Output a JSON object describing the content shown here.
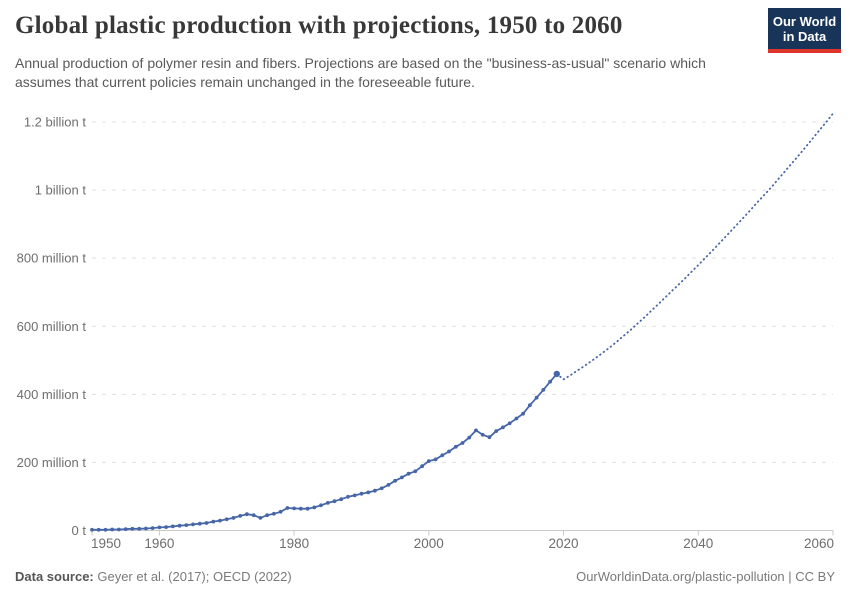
{
  "header": {
    "title": "Global plastic production with projections, 1950 to 2060",
    "subtitle": "Annual production of polymer resin and fibers. Projections are based on the \"business-as-usual\" scenario which assumes that current policies remain unchanged in the foreseeable future.",
    "logo": {
      "line1": "Our World",
      "line2": "in Data",
      "bg_color": "#183459",
      "accent_color": "#dd352b",
      "text_color": "#ffffff"
    }
  },
  "footer": {
    "datasource_label": "Data source:",
    "datasource_value": " Geyer et al. (2017); OECD (2022)",
    "attribution": "OurWorldinData.org/plastic-pollution | CC BY"
  },
  "chart_data": {
    "type": "line",
    "title": "Global plastic production with projections, 1950 to 2060",
    "xlabel": "",
    "ylabel": "",
    "unit": "tonnes (million t shown on axis)",
    "grid": true,
    "legend_position": "none",
    "x_range": [
      1950,
      2060
    ],
    "y_range": [
      0,
      1260
    ],
    "colors": {
      "line": "#4766a8",
      "grid": "#e0e0e0",
      "axis": "#c9c9c9",
      "tick_text": "#6e6e6e"
    },
    "y_axis": {
      "ticks": [
        {
          "value": 0,
          "label": "0 t"
        },
        {
          "value": 200,
          "label": "200 million t"
        },
        {
          "value": 400,
          "label": "400 million t"
        },
        {
          "value": 600,
          "label": "600 million t"
        },
        {
          "value": 800,
          "label": "800 million t"
        },
        {
          "value": 1000,
          "label": "1 billion t"
        },
        {
          "value": 1200,
          "label": "1.2 billion t"
        }
      ]
    },
    "x_axis": {
      "ticks": [
        {
          "value": 1950,
          "label": "1950"
        },
        {
          "value": 1960,
          "label": "1960"
        },
        {
          "value": 1980,
          "label": "1980"
        },
        {
          "value": 2000,
          "label": "2000"
        },
        {
          "value": 2020,
          "label": "2020"
        },
        {
          "value": 2040,
          "label": "2040"
        },
        {
          "value": 2060,
          "label": "2060"
        }
      ]
    },
    "series": [
      {
        "name": "Historical production (million tonnes)",
        "style": "solid",
        "markers": true,
        "color": "#4766a8",
        "points": [
          [
            1950,
            2
          ],
          [
            1951,
            2
          ],
          [
            1952,
            2
          ],
          [
            1953,
            3
          ],
          [
            1954,
            3
          ],
          [
            1955,
            4
          ],
          [
            1956,
            5
          ],
          [
            1957,
            5
          ],
          [
            1958,
            6
          ],
          [
            1959,
            7
          ],
          [
            1960,
            9
          ],
          [
            1961,
            10
          ],
          [
            1962,
            12
          ],
          [
            1963,
            14
          ],
          [
            1964,
            16
          ],
          [
            1965,
            18
          ],
          [
            1966,
            20
          ],
          [
            1967,
            22
          ],
          [
            1968,
            26
          ],
          [
            1969,
            29
          ],
          [
            1970,
            33
          ],
          [
            1971,
            37
          ],
          [
            1972,
            43
          ],
          [
            1973,
            48
          ],
          [
            1974,
            45
          ],
          [
            1975,
            37
          ],
          [
            1976,
            45
          ],
          [
            1977,
            49
          ],
          [
            1978,
            55
          ],
          [
            1979,
            66
          ],
          [
            1980,
            65
          ],
          [
            1981,
            64
          ],
          [
            1982,
            64
          ],
          [
            1983,
            68
          ],
          [
            1984,
            74
          ],
          [
            1985,
            81
          ],
          [
            1986,
            86
          ],
          [
            1987,
            92
          ],
          [
            1988,
            99
          ],
          [
            1989,
            103
          ],
          [
            1990,
            108
          ],
          [
            1991,
            112
          ],
          [
            1992,
            117
          ],
          [
            1993,
            124
          ],
          [
            1994,
            134
          ],
          [
            1995,
            146
          ],
          [
            1996,
            156
          ],
          [
            1997,
            167
          ],
          [
            1998,
            174
          ],
          [
            1999,
            189
          ],
          [
            2000,
            204
          ],
          [
            2001,
            209
          ],
          [
            2002,
            221
          ],
          [
            2003,
            232
          ],
          [
            2004,
            246
          ],
          [
            2005,
            257
          ],
          [
            2006,
            273
          ],
          [
            2007,
            294
          ],
          [
            2008,
            281
          ],
          [
            2009,
            274
          ],
          [
            2010,
            292
          ],
          [
            2011,
            303
          ],
          [
            2012,
            315
          ],
          [
            2013,
            329
          ],
          [
            2014,
            343
          ],
          [
            2015,
            368
          ],
          [
            2016,
            390
          ],
          [
            2017,
            413
          ],
          [
            2018,
            437
          ],
          [
            2019,
            460
          ]
        ]
      },
      {
        "name": "Projection, business-as-usual scenario (million tonnes)",
        "style": "dotted",
        "markers": false,
        "color": "#4766a8",
        "points": [
          [
            2019,
            460
          ],
          [
            2020,
            444
          ],
          [
            2021,
            456
          ],
          [
            2022,
            469
          ],
          [
            2023,
            482
          ],
          [
            2024,
            496
          ],
          [
            2025,
            510
          ],
          [
            2026,
            525
          ],
          [
            2027,
            540
          ],
          [
            2028,
            556
          ],
          [
            2029,
            573
          ],
          [
            2030,
            590
          ],
          [
            2031,
            608
          ],
          [
            2032,
            626
          ],
          [
            2033,
            645
          ],
          [
            2034,
            664
          ],
          [
            2035,
            683
          ],
          [
            2036,
            702
          ],
          [
            2037,
            721
          ],
          [
            2038,
            740
          ],
          [
            2039,
            760
          ],
          [
            2040,
            780
          ],
          [
            2041,
            800
          ],
          [
            2042,
            820
          ],
          [
            2043,
            841
          ],
          [
            2044,
            862
          ],
          [
            2045,
            883
          ],
          [
            2046,
            904
          ],
          [
            2047,
            925
          ],
          [
            2048,
            947
          ],
          [
            2049,
            969
          ],
          [
            2050,
            990
          ],
          [
            2051,
            1012
          ],
          [
            2052,
            1035
          ],
          [
            2053,
            1058
          ],
          [
            2054,
            1081
          ],
          [
            2055,
            1104
          ],
          [
            2056,
            1128
          ],
          [
            2057,
            1152
          ],
          [
            2058,
            1176
          ],
          [
            2059,
            1200
          ],
          [
            2060,
            1225
          ]
        ]
      }
    ]
  }
}
